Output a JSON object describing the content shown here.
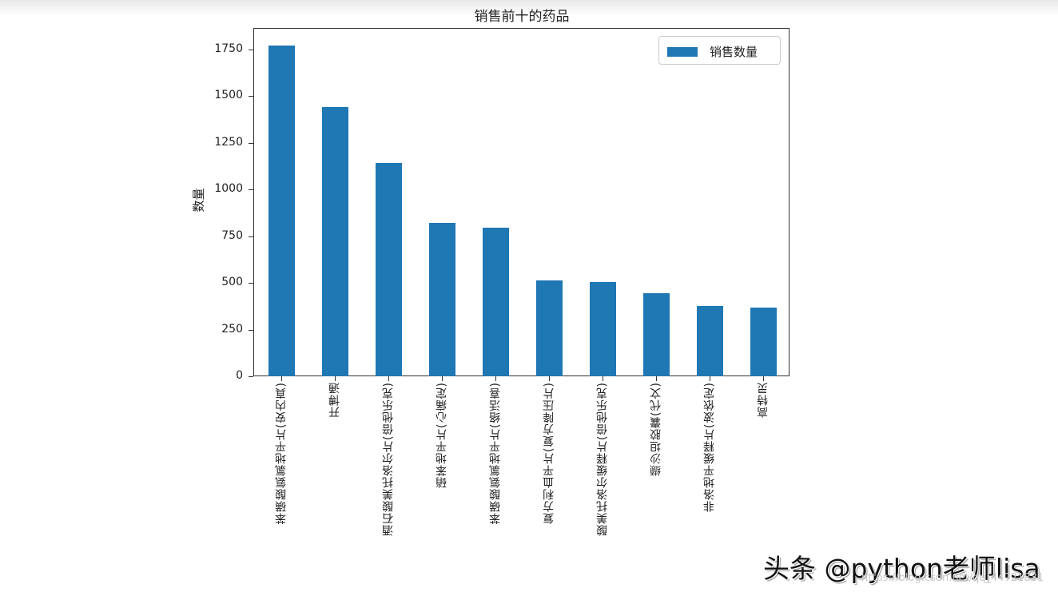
{
  "chart_data": {
    "type": "bar",
    "title": "销售前十的药品",
    "xlabel": "",
    "ylabel": "数量",
    "ylim": [
      0,
      1860
    ],
    "yticks": [
      0,
      250,
      500,
      750,
      1000,
      1250,
      1500,
      1750
    ],
    "grid": false,
    "legend_position": "upper right",
    "categories": [
      "苯磺酸氨氯地平片(安内真)",
      "开博通",
      "酒石酸美托洛尔片(倍他乐克)",
      "硝苯地平片(心痛定)",
      "苯磺酸氨氯地平片(络活喜)",
      "复方利血平片(复方降压片)",
      "酸美托洛尔缓释片(倍他乐克)",
      "缬沙坦胶囊(代文)",
      "非洛地平缓释片(波依定)",
      "高特灵"
    ],
    "series": [
      {
        "name": "销售数量",
        "color": "#1f77b4",
        "values": [
          1770,
          1440,
          1140,
          820,
          795,
          513,
          505,
          445,
          376,
          367
        ]
      }
    ]
  },
  "watermark": {
    "text": "头条 @python老师lisa",
    "url": "https://blog.csdn.net/qq_44721831"
  }
}
